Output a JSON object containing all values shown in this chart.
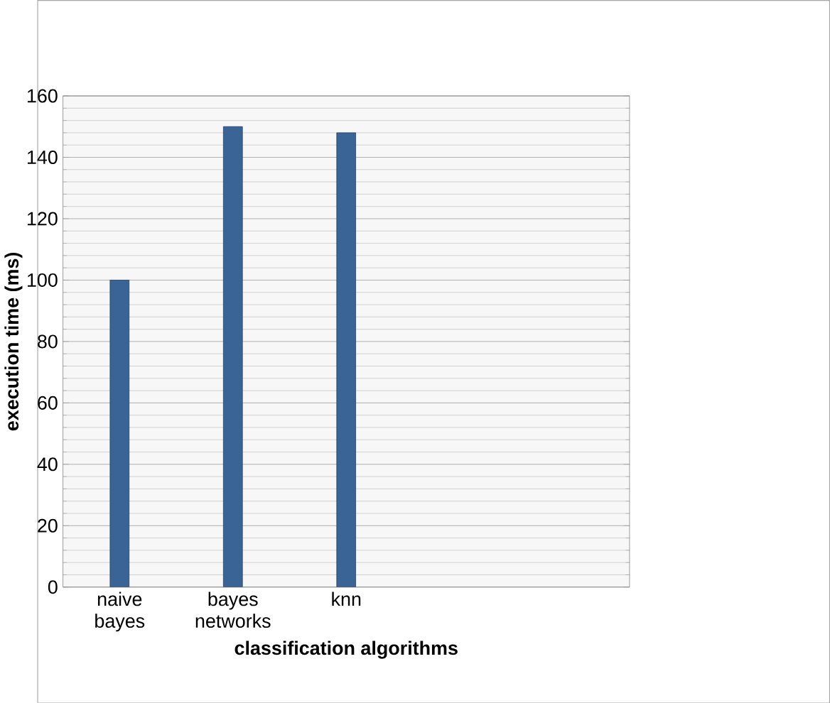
{
  "chart_data": {
    "type": "bar",
    "xlabel": "classification algorithms",
    "ylabel": "execution time (ms)",
    "categories": [
      "naive bayes",
      "bayes networks",
      "knn",
      null,
      null
    ],
    "values": [
      100,
      150,
      148,
      null,
      null
    ],
    "color": "#3a6496",
    "ylim": [
      0,
      160
    ],
    "yticks": [
      0,
      20,
      40,
      60,
      80,
      100,
      120,
      140,
      160
    ],
    "grid": "y"
  }
}
